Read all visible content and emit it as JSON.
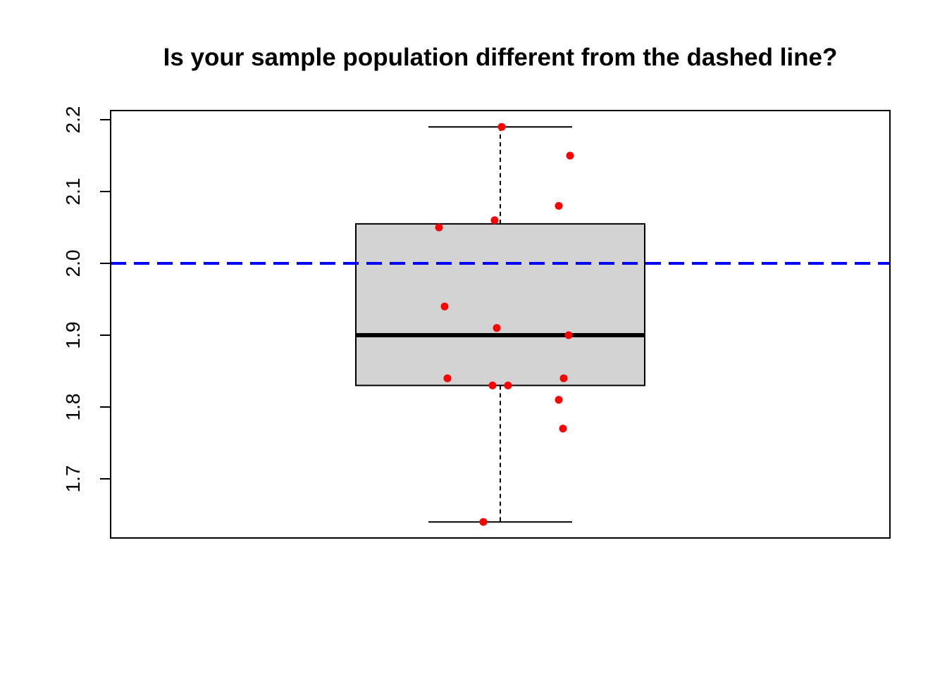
{
  "chart_data": {
    "type": "box",
    "title": "Is your sample population different from the dashed line?",
    "xlabel": "",
    "ylabel": "",
    "ylim": [
      1.62,
      2.21
    ],
    "yticks": [
      1.7,
      1.8,
      1.9,
      2.0,
      2.1,
      2.2
    ],
    "ytick_labels": [
      "1.7",
      "1.8",
      "1.9",
      "2.0",
      "2.1",
      "2.2"
    ],
    "box": {
      "whisker_low": 1.64,
      "q1": 1.83,
      "median": 1.9,
      "q3": 2.055,
      "whisker_high": 2.19,
      "fill_color": "#d3d3d3"
    },
    "reference_line": {
      "y": 2.0,
      "style": "dashed",
      "color": "#0000ff"
    },
    "points": {
      "color": "#ff0000",
      "values": [
        1.64,
        1.77,
        1.81,
        1.83,
        1.83,
        1.84,
        1.84,
        1.9,
        1.91,
        1.94,
        2.05,
        2.06,
        2.08,
        2.15,
        2.19
      ]
    },
    "grid": false,
    "legend": "none"
  }
}
